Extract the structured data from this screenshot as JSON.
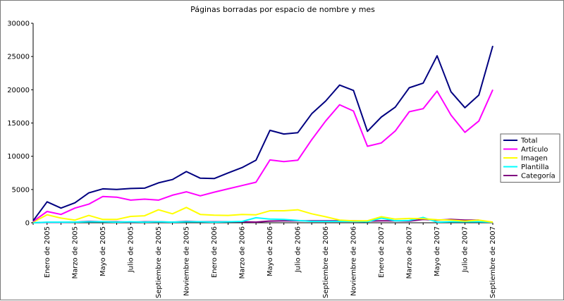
{
  "chart_data": {
    "type": "line",
    "title": "Páginas borradas por espacio de nombre y mes",
    "xlabel": "",
    "ylabel": "",
    "ylim": [
      0,
      30000
    ],
    "yticks": [
      0,
      5000,
      10000,
      15000,
      20000,
      25000,
      30000
    ],
    "grid": false,
    "legend_position": "right",
    "x": [
      "2004-12",
      "2005-01",
      "2005-02",
      "2005-03",
      "2005-04",
      "2005-05",
      "2005-06",
      "2005-07",
      "2005-08",
      "2005-09",
      "2005-10",
      "2005-11",
      "2005-12",
      "2006-01",
      "2006-02",
      "2006-03",
      "2006-04",
      "2006-05",
      "2006-06",
      "2006-07",
      "2006-08",
      "2006-09",
      "2006-10",
      "2006-11",
      "2006-12",
      "2007-01",
      "2007-02",
      "2007-03",
      "2007-04",
      "2007-05",
      "2007-06",
      "2007-07",
      "2007-08",
      "2007-09"
    ],
    "tick_labels": [
      {
        "index": 1,
        "label": "Enero de 2005"
      },
      {
        "index": 3,
        "label": "Marzo de 2005"
      },
      {
        "index": 5,
        "label": "Mayo de 2005"
      },
      {
        "index": 7,
        "label": "Julio de 2005"
      },
      {
        "index": 9,
        "label": "Septiembre de 2005"
      },
      {
        "index": 11,
        "label": "Noviembre de 2005"
      },
      {
        "index": 13,
        "label": "Enero de 2006"
      },
      {
        "index": 15,
        "label": "Marzo de 2006"
      },
      {
        "index": 17,
        "label": "Mayo de 2006"
      },
      {
        "index": 19,
        "label": "Julio de 2006"
      },
      {
        "index": 21,
        "label": "Septiembre de 2006"
      },
      {
        "index": 23,
        "label": "Noviembre de 2006"
      },
      {
        "index": 25,
        "label": "Enero de 2007"
      },
      {
        "index": 27,
        "label": "Marzo de 2007"
      },
      {
        "index": 29,
        "label": "Mayo de 2007"
      },
      {
        "index": 31,
        "label": "Julio de 2007"
      },
      {
        "index": 33,
        "label": "Septiembre de 2007"
      }
    ],
    "series": [
      {
        "name": "Total",
        "color": "#000080",
        "values": [
          300,
          3150,
          2200,
          3000,
          4500,
          5100,
          5000,
          5150,
          5200,
          6000,
          6500,
          7700,
          6700,
          6650,
          7500,
          8300,
          9400,
          13900,
          13350,
          13550,
          16400,
          18300,
          20700,
          19900,
          13750,
          15900,
          17400,
          20300,
          21000,
          25100,
          19700,
          17300,
          19200,
          26600
        ]
      },
      {
        "name": "Artículo",
        "color": "#ff00ff",
        "values": [
          200,
          1700,
          1250,
          2200,
          2800,
          3950,
          3850,
          3400,
          3550,
          3400,
          4150,
          4650,
          4050,
          4600,
          5100,
          5600,
          6100,
          9450,
          9200,
          9400,
          12500,
          15300,
          17750,
          16800,
          11500,
          12000,
          13800,
          16700,
          17150,
          19800,
          16200,
          13600,
          15300,
          20000
        ]
      },
      {
        "name": "Imagen",
        "color": "#ffff00",
        "values": [
          100,
          1200,
          700,
          400,
          1100,
          500,
          500,
          950,
          1050,
          1950,
          1350,
          2300,
          1250,
          1150,
          1100,
          1250,
          1200,
          1800,
          1800,
          1950,
          1350,
          900,
          400,
          300,
          300,
          900,
          550,
          650,
          600,
          450,
          400,
          250,
          400,
          100
        ]
      },
      {
        "name": "Plantilla",
        "color": "#00ffff",
        "values": [
          0,
          100,
          100,
          100,
          150,
          150,
          100,
          150,
          100,
          150,
          100,
          150,
          150,
          100,
          150,
          200,
          750,
          550,
          500,
          350,
          200,
          200,
          200,
          200,
          150,
          700,
          300,
          350,
          800,
          100,
          150,
          150,
          150,
          100
        ]
      },
      {
        "name": "Categoría",
        "color": "#800080",
        "values": [
          0,
          50,
          50,
          100,
          200,
          150,
          150,
          100,
          150,
          150,
          100,
          200,
          150,
          150,
          150,
          150,
          100,
          250,
          300,
          300,
          300,
          300,
          300,
          300,
          250,
          300,
          300,
          250,
          500,
          400,
          500,
          400,
          400,
          null
        ]
      }
    ]
  }
}
